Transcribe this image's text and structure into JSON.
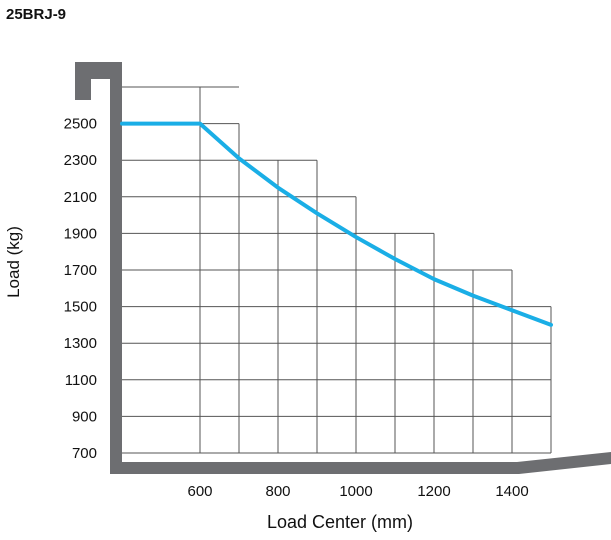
{
  "chart_data": {
    "type": "line",
    "title": "25BRJ-9",
    "xlabel": "Load Center (mm)",
    "ylabel": "Load (kg)",
    "x_ticks": [
      600,
      800,
      1000,
      1200,
      1400
    ],
    "y_ticks": [
      700,
      900,
      1100,
      1300,
      1500,
      1700,
      1900,
      2100,
      2300,
      2500
    ],
    "xlim": [
      400,
      1500
    ],
    "ylim": [
      700,
      2500
    ],
    "grid": true,
    "series": [
      {
        "color": "#1aaee6",
        "x": [
          400,
          600,
          700,
          800,
          900,
          1000,
          1100,
          1200,
          1300,
          1400,
          1500
        ],
        "y": [
          2500,
          2500,
          2310,
          2150,
          2010,
          1880,
          1760,
          1650,
          1560,
          1480,
          1400
        ]
      }
    ],
    "colors": {
      "frame": "#6d6e71",
      "grid": "#555555",
      "line": "#1aaee6"
    }
  }
}
